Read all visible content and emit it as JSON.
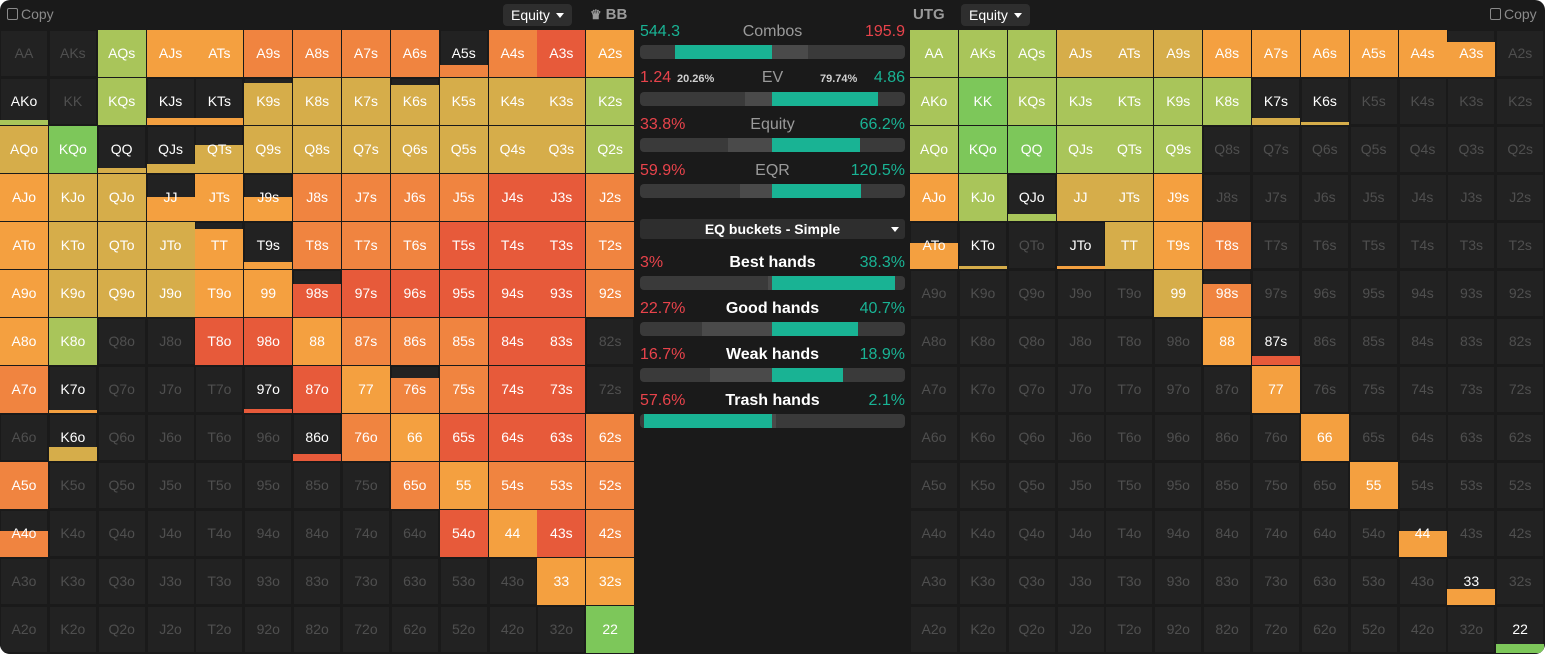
{
  "left": {
    "copy_label": "Copy",
    "mode_label": "Equity",
    "position_label": "BB",
    "crown_icon": "crown-icon"
  },
  "right": {
    "copy_label": "Copy",
    "mode_label": "Equity",
    "position_label": "UTG"
  },
  "stats": {
    "combos": {
      "label": "Combos",
      "left": "544.3",
      "right": "195.9",
      "left_frac": 0.735
    },
    "ev": {
      "label": "EV",
      "left": "1.24",
      "left_share": "20.26%",
      "right_share": "79.74%",
      "right": "4.86",
      "right_frac": 0.797
    },
    "equity": {
      "label": "Equity",
      "left": "33.8%",
      "right": "66.2%",
      "right_frac": 0.662
    },
    "eqr": {
      "label": "EQR",
      "left": "59.9%",
      "right": "120.5%",
      "right_frac": 0.68
    },
    "bucket_selector": "EQ buckets - Simple",
    "buckets": [
      {
        "label": "Best hands",
        "left": "3%",
        "right": "38.3%",
        "left_frac": 0.03,
        "right_frac": 0.93
      },
      {
        "label": "Good hands",
        "left": "22.7%",
        "right": "40.7%",
        "left_frac": 0.53,
        "right_frac": 0.65
      },
      {
        "label": "Weak hands",
        "left": "16.7%",
        "right": "18.9%",
        "left_frac": 0.47,
        "right_frac": 0.54
      },
      {
        "label": "Trash hands",
        "left": "57.6%",
        "right": "2.1%",
        "left_frac": 0.97,
        "right_frac": 0.03
      }
    ]
  },
  "colors": {
    "green": "#7dc75a",
    "lime": "#a9c55a",
    "olive": "#c6b44f",
    "yellow": "#d8ad48",
    "orange": "#f4a040",
    "dorange": "#f08440",
    "red": "#e75a3a",
    "empty": "#222222",
    "bg": "#1a1a1a",
    "teal": "#19b394",
    "red_text": "#e8434b"
  },
  "hands_rows": [
    [
      "AA",
      "AKs",
      "AQs",
      "AJs",
      "ATs",
      "A9s",
      "A8s",
      "A7s",
      "A6s",
      "A5s",
      "A4s",
      "A3s",
      "A2s"
    ],
    [
      "AKo",
      "KK",
      "KQs",
      "KJs",
      "KTs",
      "K9s",
      "K8s",
      "K7s",
      "K6s",
      "K5s",
      "K4s",
      "K3s",
      "K2s"
    ],
    [
      "AQo",
      "KQo",
      "QQ",
      "QJs",
      "QTs",
      "Q9s",
      "Q8s",
      "Q7s",
      "Q6s",
      "Q5s",
      "Q4s",
      "Q3s",
      "Q2s"
    ],
    [
      "AJo",
      "KJo",
      "QJo",
      "JJ",
      "JTs",
      "J9s",
      "J8s",
      "J7s",
      "J6s",
      "J5s",
      "J4s",
      "J3s",
      "J2s"
    ],
    [
      "ATo",
      "KTo",
      "QTo",
      "JTo",
      "TT",
      "T9s",
      "T8s",
      "T7s",
      "T6s",
      "T5s",
      "T4s",
      "T3s",
      "T2s"
    ],
    [
      "A9o",
      "K9o",
      "Q9o",
      "J9o",
      "T9o",
      "99",
      "98s",
      "97s",
      "96s",
      "95s",
      "94s",
      "93s",
      "92s"
    ],
    [
      "A8o",
      "K8o",
      "Q8o",
      "J8o",
      "T8o",
      "98o",
      "88",
      "87s",
      "86s",
      "85s",
      "84s",
      "83s",
      "82s"
    ],
    [
      "A7o",
      "K7o",
      "Q7o",
      "J7o",
      "T7o",
      "97o",
      "87o",
      "77",
      "76s",
      "75s",
      "74s",
      "73s",
      "72s"
    ],
    [
      "A6o",
      "K6o",
      "Q6o",
      "J6o",
      "T6o",
      "96o",
      "86o",
      "76o",
      "66",
      "65s",
      "64s",
      "63s",
      "62s"
    ],
    [
      "A5o",
      "K5o",
      "Q5o",
      "J5o",
      "T5o",
      "95o",
      "85o",
      "75o",
      "65o",
      "55",
      "54s",
      "53s",
      "52s"
    ],
    [
      "A4o",
      "K4o",
      "Q4o",
      "J4o",
      "T4o",
      "94o",
      "84o",
      "74o",
      "64o",
      "54o",
      "44",
      "43s",
      "42s"
    ],
    [
      "A3o",
      "K3o",
      "Q3o",
      "J3o",
      "T3o",
      "93o",
      "83o",
      "73o",
      "63o",
      "53o",
      "43o",
      "33",
      "32s"
    ],
    [
      "A2o",
      "K2o",
      "Q2o",
      "J2o",
      "T2o",
      "92o",
      "82o",
      "72o",
      "62o",
      "52o",
      "42o",
      "32o",
      "22"
    ]
  ],
  "bb_colors": [
    "_______OOODRRRRRRRRRRO",
    "x"
  ],
  "bb_grid": [
    [
      [
        "e",
        0
      ],
      [
        "e",
        0
      ],
      [
        "l",
        1
      ],
      [
        "o",
        1
      ],
      [
        "o",
        1
      ],
      [
        "d",
        1
      ],
      [
        "d",
        1
      ],
      [
        "d",
        1
      ],
      [
        "d",
        1
      ],
      [
        "d",
        0.25
      ],
      [
        "d",
        1
      ],
      [
        "r",
        1
      ],
      [
        "o",
        1
      ]
    ],
    [
      [
        "l",
        0.1
      ],
      [
        "e",
        0
      ],
      [
        "l",
        1
      ],
      [
        "o",
        0.15
      ],
      [
        "o",
        0.15
      ],
      [
        "y",
        0.9
      ],
      [
        "y",
        1
      ],
      [
        "y",
        1
      ],
      [
        "y",
        0.85
      ],
      [
        "y",
        1
      ],
      [
        "y",
        1
      ],
      [
        "y",
        1
      ],
      [
        "l",
        1
      ]
    ],
    [
      [
        "y",
        1
      ],
      [
        "g",
        1
      ],
      [
        "y",
        0.1
      ],
      [
        "y",
        0.2
      ],
      [
        "y",
        0.6
      ],
      [
        "y",
        1
      ],
      [
        "y",
        1
      ],
      [
        "y",
        1
      ],
      [
        "y",
        1
      ],
      [
        "y",
        1
      ],
      [
        "y",
        1
      ],
      [
        "y",
        1
      ],
      [
        "l",
        1
      ]
    ],
    [
      [
        "o",
        1
      ],
      [
        "y",
        1
      ],
      [
        "y",
        1
      ],
      [
        "o",
        0.5
      ],
      [
        "o",
        1
      ],
      [
        "o",
        0.5
      ],
      [
        "d",
        1
      ],
      [
        "d",
        1
      ],
      [
        "d",
        1
      ],
      [
        "d",
        1
      ],
      [
        "r",
        1
      ],
      [
        "r",
        1
      ],
      [
        "d",
        1
      ]
    ],
    [
      [
        "o",
        1
      ],
      [
        "y",
        1
      ],
      [
        "y",
        1
      ],
      [
        "y",
        1
      ],
      [
        "o",
        0.85
      ],
      [
        "o",
        0.15
      ],
      [
        "d",
        1
      ],
      [
        "d",
        1
      ],
      [
        "d",
        1
      ],
      [
        "r",
        1
      ],
      [
        "r",
        1
      ],
      [
        "r",
        1
      ],
      [
        "d",
        1
      ]
    ],
    [
      [
        "o",
        1
      ],
      [
        "y",
        1
      ],
      [
        "y",
        1
      ],
      [
        "y",
        1
      ],
      [
        "o",
        1
      ],
      [
        "o",
        1
      ],
      [
        "r",
        0.7
      ],
      [
        "r",
        1
      ],
      [
        "r",
        1
      ],
      [
        "r",
        1
      ],
      [
        "r",
        1
      ],
      [
        "r",
        1
      ],
      [
        "d",
        1
      ]
    ],
    [
      [
        "o",
        1
      ],
      [
        "l",
        1
      ],
      [
        "e",
        0
      ],
      [
        "e",
        0
      ],
      [
        "r",
        1
      ],
      [
        "r",
        1
      ],
      [
        "o",
        1
      ],
      [
        "d",
        1
      ],
      [
        "d",
        1
      ],
      [
        "d",
        1
      ],
      [
        "r",
        1
      ],
      [
        "r",
        1
      ],
      [
        "e",
        0
      ]
    ],
    [
      [
        "d",
        1
      ],
      [
        "o",
        0.05
      ],
      [
        "e",
        0
      ],
      [
        "e",
        0
      ],
      [
        "e",
        0
      ],
      [
        "r",
        0.08
      ],
      [
        "r",
        1
      ],
      [
        "o",
        1
      ],
      [
        "d",
        0.75
      ],
      [
        "d",
        1
      ],
      [
        "r",
        1
      ],
      [
        "r",
        1
      ],
      [
        "e",
        0
      ]
    ],
    [
      [
        "e",
        0
      ],
      [
        "y",
        0.3
      ],
      [
        "e",
        0
      ],
      [
        "e",
        0
      ],
      [
        "e",
        0
      ],
      [
        "e",
        0
      ],
      [
        "r",
        0.15
      ],
      [
        "d",
        1
      ],
      [
        "o",
        1
      ],
      [
        "r",
        1
      ],
      [
        "r",
        1
      ],
      [
        "r",
        1
      ],
      [
        "d",
        1
      ]
    ],
    [
      [
        "d",
        1
      ],
      [
        "e",
        0
      ],
      [
        "e",
        0
      ],
      [
        "e",
        0
      ],
      [
        "e",
        0
      ],
      [
        "e",
        0
      ],
      [
        "e",
        0
      ],
      [
        "e",
        0
      ],
      [
        "d",
        1
      ],
      [
        "o",
        1
      ],
      [
        "d",
        1
      ],
      [
        "d",
        1
      ],
      [
        "d",
        1
      ]
    ],
    [
      [
        "d",
        0.55
      ],
      [
        "e",
        0
      ],
      [
        "e",
        0
      ],
      [
        "e",
        0
      ],
      [
        "e",
        0
      ],
      [
        "e",
        0
      ],
      [
        "e",
        0
      ],
      [
        "e",
        0
      ],
      [
        "e",
        0
      ],
      [
        "r",
        1
      ],
      [
        "o",
        1
      ],
      [
        "r",
        1
      ],
      [
        "d",
        1
      ]
    ],
    [
      [
        "e",
        0
      ],
      [
        "e",
        0
      ],
      [
        "e",
        0
      ],
      [
        "e",
        0
      ],
      [
        "e",
        0
      ],
      [
        "e",
        0
      ],
      [
        "e",
        0
      ],
      [
        "e",
        0
      ],
      [
        "e",
        0
      ],
      [
        "e",
        0
      ],
      [
        "e",
        0
      ],
      [
        "o",
        1
      ],
      [
        "o",
        1
      ]
    ],
    [
      [
        "e",
        0
      ],
      [
        "e",
        0
      ],
      [
        "e",
        0
      ],
      [
        "e",
        0
      ],
      [
        "e",
        0
      ],
      [
        "e",
        0
      ],
      [
        "e",
        0
      ],
      [
        "e",
        0
      ],
      [
        "e",
        0
      ],
      [
        "e",
        0
      ],
      [
        "e",
        0
      ],
      [
        "e",
        0
      ],
      [
        "g",
        1
      ]
    ]
  ],
  "utg_grid": [
    [
      [
        "l",
        1
      ],
      [
        "l",
        1
      ],
      [
        "l",
        1
      ],
      [
        "y",
        1
      ],
      [
        "y",
        1
      ],
      [
        "y",
        1
      ],
      [
        "o",
        1
      ],
      [
        "o",
        1
      ],
      [
        "o",
        1
      ],
      [
        "o",
        1
      ],
      [
        "o",
        1
      ],
      [
        "o",
        0.75
      ],
      [
        "e",
        0
      ]
    ],
    [
      [
        "l",
        1
      ],
      [
        "g",
        1
      ],
      [
        "l",
        1
      ],
      [
        "l",
        1
      ],
      [
        "l",
        1
      ],
      [
        "l",
        1
      ],
      [
        "l",
        1
      ],
      [
        "y",
        0.15
      ],
      [
        "y",
        0.05
      ],
      [
        "e",
        0
      ],
      [
        "e",
        0
      ],
      [
        "e",
        0
      ],
      [
        "e",
        0
      ]
    ],
    [
      [
        "l",
        1
      ],
      [
        "g",
        1
      ],
      [
        "g",
        1
      ],
      [
        "l",
        1
      ],
      [
        "l",
        1
      ],
      [
        "l",
        1
      ],
      [
        "e",
        0
      ],
      [
        "e",
        0
      ],
      [
        "e",
        0
      ],
      [
        "e",
        0
      ],
      [
        "e",
        0
      ],
      [
        "e",
        0
      ],
      [
        "e",
        0
      ]
    ],
    [
      [
        "o",
        1
      ],
      [
        "l",
        1
      ],
      [
        "l",
        0.15
      ],
      [
        "y",
        1
      ],
      [
        "y",
        1
      ],
      [
        "o",
        1
      ],
      [
        "e",
        0
      ],
      [
        "e",
        0
      ],
      [
        "e",
        0
      ],
      [
        "e",
        0
      ],
      [
        "e",
        0
      ],
      [
        "e",
        0
      ],
      [
        "e",
        0
      ]
    ],
    [
      [
        "o",
        0.55
      ],
      [
        "y",
        0.05
      ],
      [
        "e",
        0
      ],
      [
        "o",
        0.04
      ],
      [
        "y",
        1
      ],
      [
        "o",
        1
      ],
      [
        "d",
        1
      ],
      [
        "e",
        0
      ],
      [
        "e",
        0
      ],
      [
        "e",
        0
      ],
      [
        "e",
        0
      ],
      [
        "e",
        0
      ],
      [
        "e",
        0
      ]
    ],
    [
      [
        "e",
        0
      ],
      [
        "e",
        0
      ],
      [
        "e",
        0
      ],
      [
        "e",
        0
      ],
      [
        "e",
        0
      ],
      [
        "y",
        1
      ],
      [
        "d",
        0.7
      ],
      [
        "e",
        0
      ],
      [
        "e",
        0
      ],
      [
        "e",
        0
      ],
      [
        "e",
        0
      ],
      [
        "e",
        0
      ],
      [
        "e",
        0
      ]
    ],
    [
      [
        "e",
        0
      ],
      [
        "e",
        0
      ],
      [
        "e",
        0
      ],
      [
        "e",
        0
      ],
      [
        "e",
        0
      ],
      [
        "e",
        0
      ],
      [
        "o",
        1
      ],
      [
        "r",
        0.2
      ],
      [
        "e",
        0
      ],
      [
        "e",
        0
      ],
      [
        "e",
        0
      ],
      [
        "e",
        0
      ],
      [
        "e",
        0
      ]
    ],
    [
      [
        "e",
        0
      ],
      [
        "e",
        0
      ],
      [
        "e",
        0
      ],
      [
        "e",
        0
      ],
      [
        "e",
        0
      ],
      [
        "e",
        0
      ],
      [
        "e",
        0
      ],
      [
        "o",
        1
      ],
      [
        "e",
        0
      ],
      [
        "e",
        0
      ],
      [
        "e",
        0
      ],
      [
        "e",
        0
      ],
      [
        "e",
        0
      ]
    ],
    [
      [
        "e",
        0
      ],
      [
        "e",
        0
      ],
      [
        "e",
        0
      ],
      [
        "e",
        0
      ],
      [
        "e",
        0
      ],
      [
        "e",
        0
      ],
      [
        "e",
        0
      ],
      [
        "e",
        0
      ],
      [
        "o",
        1
      ],
      [
        "e",
        0
      ],
      [
        "e",
        0
      ],
      [
        "e",
        0
      ],
      [
        "e",
        0
      ]
    ],
    [
      [
        "e",
        0
      ],
      [
        "e",
        0
      ],
      [
        "e",
        0
      ],
      [
        "e",
        0
      ],
      [
        "e",
        0
      ],
      [
        "e",
        0
      ],
      [
        "e",
        0
      ],
      [
        "e",
        0
      ],
      [
        "e",
        0
      ],
      [
        "o",
        1
      ],
      [
        "e",
        0
      ],
      [
        "e",
        0
      ],
      [
        "e",
        0
      ]
    ],
    [
      [
        "e",
        0
      ],
      [
        "e",
        0
      ],
      [
        "e",
        0
      ],
      [
        "e",
        0
      ],
      [
        "e",
        0
      ],
      [
        "e",
        0
      ],
      [
        "e",
        0
      ],
      [
        "e",
        0
      ],
      [
        "e",
        0
      ],
      [
        "e",
        0
      ],
      [
        "o",
        0.55
      ],
      [
        "e",
        0
      ],
      [
        "e",
        0
      ]
    ],
    [
      [
        "e",
        0
      ],
      [
        "e",
        0
      ],
      [
        "e",
        0
      ],
      [
        "e",
        0
      ],
      [
        "e",
        0
      ],
      [
        "e",
        0
      ],
      [
        "e",
        0
      ],
      [
        "e",
        0
      ],
      [
        "e",
        0
      ],
      [
        "e",
        0
      ],
      [
        "e",
        0
      ],
      [
        "o",
        0.35
      ],
      [
        "e",
        0
      ]
    ],
    [
      [
        "e",
        0
      ],
      [
        "e",
        0
      ],
      [
        "e",
        0
      ],
      [
        "e",
        0
      ],
      [
        "e",
        0
      ],
      [
        "e",
        0
      ],
      [
        "e",
        0
      ],
      [
        "e",
        0
      ],
      [
        "e",
        0
      ],
      [
        "e",
        0
      ],
      [
        "e",
        0
      ],
      [
        "e",
        0
      ],
      [
        "g",
        0.2
      ]
    ]
  ]
}
